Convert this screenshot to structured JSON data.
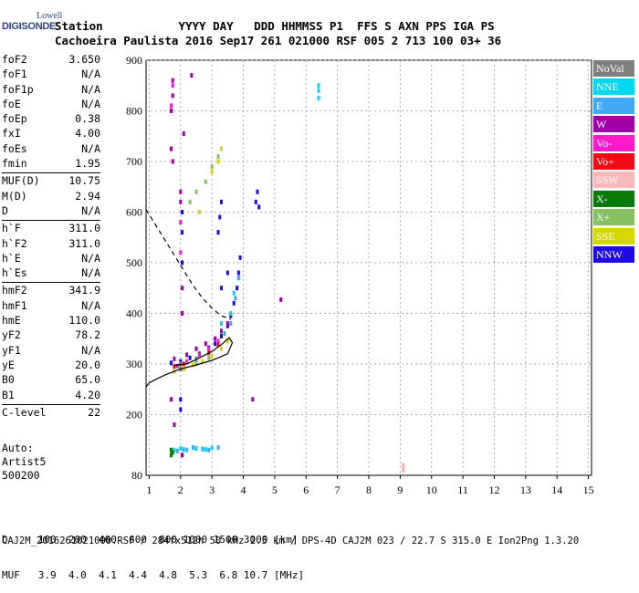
{
  "logo": {
    "line1": "Lowell",
    "line2": "DIGISONDE"
  },
  "header": {
    "line1": "Station           YYYY DAY   DDD HHMMSS P1  FFS S AXN PPS IGA PS",
    "line2": "Cachoeira Paulista 2016 Sep17 261 021000 RSF 005 2 713 100 03+ 36"
  },
  "params": [
    {
      "k": "foF2",
      "v": "3.650"
    },
    {
      "k": "foF1",
      "v": "N/A"
    },
    {
      "k": "foF1p",
      "v": "N/A"
    },
    {
      "k": "foE",
      "v": "N/A"
    },
    {
      "k": "foEp",
      "v": "0.38"
    },
    {
      "k": "fxI",
      "v": "4.00"
    },
    {
      "k": "foEs",
      "v": "N/A"
    },
    {
      "k": "fmin",
      "v": "1.95"
    },
    {
      "sep": true
    },
    {
      "k": "MUF(D)",
      "v": "10.75"
    },
    {
      "k": "M(D)",
      "v": "2.94"
    },
    {
      "k": "D",
      "v": "N/A"
    },
    {
      "sep": true
    },
    {
      "k": "h`F",
      "v": "311.0"
    },
    {
      "k": "h`F2",
      "v": "311.0"
    },
    {
      "k": "h`E",
      "v": "N/A"
    },
    {
      "k": "h`Es",
      "v": "N/A"
    },
    {
      "sep": true
    },
    {
      "k": "hmF2",
      "v": "341.9"
    },
    {
      "k": "hmF1",
      "v": "N/A"
    },
    {
      "k": "hmE",
      "v": "110.0"
    },
    {
      "k": "yF2",
      "v": "78.2"
    },
    {
      "k": "yF1",
      "v": "N/A"
    },
    {
      "k": "yE",
      "v": "20.0"
    },
    {
      "k": "B0",
      "v": "65.0"
    },
    {
      "k": "B1",
      "v": "4.20"
    },
    {
      "sep": true
    },
    {
      "k": "C-level",
      "v": "22"
    }
  ],
  "auto": {
    "l1": "Auto:",
    "l2": "Artist5",
    "l3": "500200"
  },
  "legend": [
    {
      "label": "NoVal",
      "color": "#7f7f7f"
    },
    {
      "label": "NNE",
      "color": "#00d8f0"
    },
    {
      "label": "E",
      "color": "#3fa9f5"
    },
    {
      "label": "W",
      "color": "#a000a8"
    },
    {
      "label": "Vo-",
      "color": "#ff19c8"
    },
    {
      "label": "Vo+",
      "color": "#f00a14"
    },
    {
      "label": "SSW",
      "color": "#fbb8b8"
    },
    {
      "label": "X-",
      "color": "#0a7a0a"
    },
    {
      "label": "X+",
      "color": "#86c060"
    },
    {
      "label": "SSE",
      "color": "#d7d700"
    },
    {
      "label": "NNW",
      "color": "#1e0ae6"
    }
  ],
  "bottom": {
    "line1": "D     100  200  400  600  800 1000 1500 3000 [km]",
    "line2": "MUF   3.9  4.0  4.1  4.4  4.8  5.3  6.8 10.7 [MHz]"
  },
  "footer": "CAJ2M_2016261021000.RSF / 284fx512h 50 kHz 2.5 km / DPS-4D CAJ2M 023 / 22.7 S 315.0 E Ion2Png 1.3.20",
  "chart_data": {
    "type": "scatter",
    "xlim": [
      0.9,
      15.1
    ],
    "ylim": [
      80,
      900
    ],
    "xticks": [
      1,
      2,
      3,
      4,
      5,
      6,
      7,
      8,
      9,
      10,
      11,
      12,
      13,
      14,
      15
    ],
    "yticks": [
      80,
      200,
      300,
      400,
      500,
      600,
      700,
      800,
      900
    ],
    "curves": {
      "profile": [
        [
          1.8,
          297
        ],
        [
          2.2,
          300
        ],
        [
          2.6,
          312
        ],
        [
          3.0,
          325
        ],
        [
          3.3,
          338
        ],
        [
          3.55,
          352
        ],
        [
          3.65,
          342
        ],
        [
          3.5,
          320
        ],
        [
          3.0,
          307
        ],
        [
          2.5,
          298
        ],
        [
          2.0,
          290
        ],
        [
          1.5,
          278
        ],
        [
          1.0,
          263
        ],
        [
          0.9,
          255
        ]
      ],
      "muf_dashed": [
        [
          0.9,
          605
        ],
        [
          1.2,
          575
        ],
        [
          1.5,
          545
        ],
        [
          1.8,
          515
        ],
        [
          2.1,
          485
        ],
        [
          2.4,
          455
        ],
        [
          2.7,
          430
        ],
        [
          3.0,
          410
        ],
        [
          3.3,
          395
        ],
        [
          3.6,
          388
        ]
      ]
    },
    "series": [
      {
        "color": "#1e0ae6",
        "points": [
          [
            1.7,
            302
          ],
          [
            2.0,
            305
          ],
          [
            2.3,
            312
          ],
          [
            2.6,
            320
          ],
          [
            2.9,
            332
          ],
          [
            3.1,
            340
          ],
          [
            3.3,
            355
          ],
          [
            3.5,
            375
          ],
          [
            3.6,
            395
          ],
          [
            3.7,
            420
          ],
          [
            3.8,
            450
          ],
          [
            3.85,
            480
          ],
          [
            3.9,
            510
          ],
          [
            3.5,
            480
          ],
          [
            3.3,
            450
          ],
          [
            3.2,
            560
          ],
          [
            3.25,
            590
          ],
          [
            3.3,
            620
          ],
          [
            4.4,
            620
          ],
          [
            4.45,
            640
          ],
          [
            4.5,
            610
          ],
          [
            2.05,
            600
          ],
          [
            2.05,
            560
          ],
          [
            2.05,
            500
          ],
          [
            2.0,
            230
          ],
          [
            2.0,
            210
          ]
        ]
      },
      {
        "color": "#a000a8",
        "points": [
          [
            1.75,
            860
          ],
          [
            1.75,
            830
          ],
          [
            1.7,
            800
          ],
          [
            1.7,
            725
          ],
          [
            1.75,
            700
          ],
          [
            2.35,
            870
          ],
          [
            2.1,
            755
          ],
          [
            1.8,
            310
          ],
          [
            2.2,
            318
          ],
          [
            2.5,
            330
          ],
          [
            2.8,
            340
          ],
          [
            3.1,
            350
          ],
          [
            3.3,
            365
          ],
          [
            3.5,
            380
          ],
          [
            2.0,
            640
          ],
          [
            2.0,
            620
          ],
          [
            2.05,
            450
          ],
          [
            2.05,
            400
          ],
          [
            5.2,
            427
          ],
          [
            4.3,
            230
          ],
          [
            1.7,
            230
          ],
          [
            1.8,
            180
          ],
          [
            2.05,
            120
          ]
        ]
      },
      {
        "color": "#ff19c8",
        "points": [
          [
            1.75,
            850
          ],
          [
            1.7,
            810
          ],
          [
            1.9,
            296
          ],
          [
            2.2,
            305
          ],
          [
            2.6,
            318
          ],
          [
            2.9,
            330
          ],
          [
            3.2,
            345
          ],
          [
            2.0,
            580
          ],
          [
            2.0,
            520
          ]
        ]
      },
      {
        "color": "#f00a14",
        "points": [
          [
            1.8,
            295
          ],
          [
            2.1,
            300
          ],
          [
            2.5,
            310
          ],
          [
            2.9,
            322
          ],
          [
            3.2,
            338
          ]
        ]
      },
      {
        "color": "#00d8f0",
        "points": [
          [
            6.4,
            850
          ],
          [
            6.4,
            840
          ],
          [
            6.4,
            825
          ],
          [
            1.8,
            130
          ],
          [
            2.0,
            133
          ],
          [
            2.2,
            130
          ],
          [
            2.5,
            133
          ],
          [
            2.8,
            131
          ],
          [
            3.0,
            134
          ],
          [
            3.3,
            380
          ],
          [
            3.6,
            400
          ],
          [
            3.7,
            440
          ]
        ]
      },
      {
        "color": "#3fa9f5",
        "points": [
          [
            1.9,
            128
          ],
          [
            2.1,
            131
          ],
          [
            2.4,
            135
          ],
          [
            2.7,
            132
          ],
          [
            2.9,
            130
          ],
          [
            3.2,
            135
          ],
          [
            3.4,
            360
          ],
          [
            3.6,
            380
          ],
          [
            3.75,
            430
          ],
          [
            3.85,
            470
          ],
          [
            2.0,
            300
          ],
          [
            2.5,
            308
          ]
        ]
      },
      {
        "color": "#0a7a0a",
        "points": [
          [
            1.7,
            130
          ],
          [
            1.75,
            125
          ],
          [
            1.7,
            120
          ]
        ]
      },
      {
        "color": "#86c060",
        "points": [
          [
            2.3,
            620
          ],
          [
            2.5,
            640
          ],
          [
            2.8,
            660
          ],
          [
            3.0,
            690
          ],
          [
            3.2,
            710
          ],
          [
            2.1,
            290
          ],
          [
            2.5,
            300
          ],
          [
            2.9,
            312
          ]
        ]
      },
      {
        "color": "#d7d700",
        "points": [
          [
            1.8,
            285
          ],
          [
            2.1,
            290
          ],
          [
            2.4,
            298
          ],
          [
            2.7,
            305
          ],
          [
            3.0,
            315
          ],
          [
            3.3,
            330
          ],
          [
            3.5,
            345
          ],
          [
            2.6,
            600
          ],
          [
            3.0,
            680
          ],
          [
            3.2,
            700
          ],
          [
            3.3,
            725
          ]
        ]
      },
      {
        "color": "#fbb8b8",
        "points": [
          [
            9.1,
            100
          ],
          [
            9.1,
            95
          ],
          [
            9.1,
            90
          ]
        ]
      },
      {
        "color": "#7f7f7f",
        "points": [
          [
            2.0,
            300
          ],
          [
            2.0,
            290
          ]
        ]
      }
    ]
  }
}
